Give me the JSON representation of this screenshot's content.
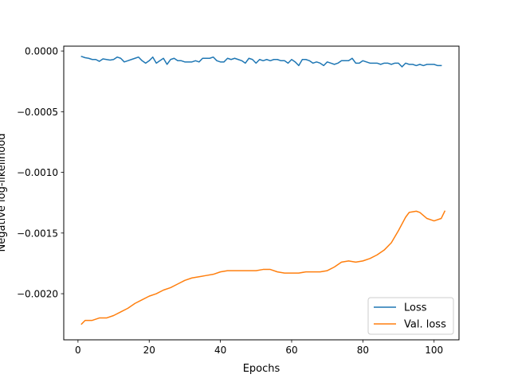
{
  "chart_data": {
    "type": "line",
    "title": "",
    "xlabel": "Epochs",
    "ylabel": "Negative log-likelihood",
    "xlim": [
      -4,
      107
    ],
    "ylim": [
      -0.00238,
      4e-05
    ],
    "x_ticks": [
      0,
      20,
      40,
      60,
      80,
      100
    ],
    "y_ticks": [
      0.0,
      -0.0005,
      -0.001,
      -0.0015,
      -0.002
    ],
    "y_tick_labels": [
      "0.0000",
      "−0.0005",
      "−0.0010",
      "−0.0015",
      "−0.0020"
    ],
    "legend_position": "lower-right",
    "grid": false,
    "series": [
      {
        "name": "Loss",
        "color": "#1f77b4",
        "points": [
          [
            1,
            -4.5e-05
          ],
          [
            2,
            -5.5e-05
          ],
          [
            3,
            -6e-05
          ],
          [
            4,
            -7e-05
          ],
          [
            5,
            -7e-05
          ],
          [
            6,
            -8.5e-05
          ],
          [
            7,
            -6.5e-05
          ],
          [
            8,
            -7e-05
          ],
          [
            9,
            -7.5e-05
          ],
          [
            10,
            -7e-05
          ],
          [
            11,
            -5e-05
          ],
          [
            12,
            -6e-05
          ],
          [
            13,
            -9e-05
          ],
          [
            14,
            -8e-05
          ],
          [
            15,
            -7e-05
          ],
          [
            16,
            -6e-05
          ],
          [
            17,
            -5e-05
          ],
          [
            18,
            -8e-05
          ],
          [
            19,
            -0.0001
          ],
          [
            20,
            -8e-05
          ],
          [
            21,
            -5e-05
          ],
          [
            22,
            -0.0001
          ],
          [
            23,
            -8e-05
          ],
          [
            24,
            -6e-05
          ],
          [
            25,
            -0.00011
          ],
          [
            26,
            -7e-05
          ],
          [
            27,
            -6e-05
          ],
          [
            28,
            -8e-05
          ],
          [
            29,
            -8e-05
          ],
          [
            30,
            -9e-05
          ],
          [
            31,
            -9e-05
          ],
          [
            32,
            -9e-05
          ],
          [
            33,
            -8e-05
          ],
          [
            34,
            -9e-05
          ],
          [
            35,
            -6e-05
          ],
          [
            36,
            -6e-05
          ],
          [
            37,
            -6e-05
          ],
          [
            38,
            -5e-05
          ],
          [
            39,
            -8e-05
          ],
          [
            40,
            -9e-05
          ],
          [
            41,
            -9e-05
          ],
          [
            42,
            -6e-05
          ],
          [
            43,
            -7e-05
          ],
          [
            44,
            -6e-05
          ],
          [
            45,
            -7e-05
          ],
          [
            46,
            -8e-05
          ],
          [
            47,
            -0.0001
          ],
          [
            48,
            -6e-05
          ],
          [
            49,
            -7e-05
          ],
          [
            50,
            -0.0001
          ],
          [
            51,
            -7e-05
          ],
          [
            52,
            -8e-05
          ],
          [
            53,
            -7e-05
          ],
          [
            54,
            -8e-05
          ],
          [
            55,
            -7e-05
          ],
          [
            56,
            -7e-05
          ],
          [
            57,
            -8e-05
          ],
          [
            58,
            -8e-05
          ],
          [
            59,
            -0.0001
          ],
          [
            60,
            -7e-05
          ],
          [
            61,
            -9e-05
          ],
          [
            62,
            -0.00012
          ],
          [
            63,
            -7e-05
          ],
          [
            64,
            -7e-05
          ],
          [
            65,
            -8e-05
          ],
          [
            66,
            -0.0001
          ],
          [
            67,
            -9e-05
          ],
          [
            68,
            -0.0001
          ],
          [
            69,
            -0.00012
          ],
          [
            70,
            -9e-05
          ],
          [
            71,
            -0.0001
          ],
          [
            72,
            -0.00011
          ],
          [
            73,
            -0.0001
          ],
          [
            74,
            -8e-05
          ],
          [
            75,
            -8e-05
          ],
          [
            76,
            -8e-05
          ],
          [
            77,
            -6e-05
          ],
          [
            78,
            -0.0001
          ],
          [
            79,
            -0.0001
          ],
          [
            80,
            -8e-05
          ],
          [
            81,
            -9e-05
          ],
          [
            82,
            -0.0001
          ],
          [
            83,
            -0.0001
          ],
          [
            84,
            -0.0001
          ],
          [
            85,
            -0.00011
          ],
          [
            86,
            -0.0001
          ],
          [
            87,
            -0.0001
          ],
          [
            88,
            -0.00011
          ],
          [
            89,
            -0.0001
          ],
          [
            90,
            -0.0001
          ],
          [
            91,
            -0.00013
          ],
          [
            92,
            -0.0001
          ],
          [
            93,
            -0.00011
          ],
          [
            94,
            -0.00011
          ],
          [
            95,
            -0.00012
          ],
          [
            96,
            -0.00011
          ],
          [
            97,
            -0.00012
          ],
          [
            98,
            -0.00011
          ],
          [
            99,
            -0.00011
          ],
          [
            100,
            -0.00011
          ],
          [
            101,
            -0.00012
          ],
          [
            102,
            -0.00012
          ]
        ]
      },
      {
        "name": "Val. loss",
        "color": "#ff7f0e",
        "points": [
          [
            1,
            -0.00225
          ],
          [
            2,
            -0.00222
          ],
          [
            4,
            -0.00222
          ],
          [
            6,
            -0.0022
          ],
          [
            8,
            -0.0022
          ],
          [
            10,
            -0.00218
          ],
          [
            12,
            -0.00215
          ],
          [
            14,
            -0.00212
          ],
          [
            16,
            -0.00208
          ],
          [
            18,
            -0.00205
          ],
          [
            20,
            -0.00202
          ],
          [
            22,
            -0.002
          ],
          [
            24,
            -0.00197
          ],
          [
            26,
            -0.00195
          ],
          [
            28,
            -0.00192
          ],
          [
            30,
            -0.00189
          ],
          [
            32,
            -0.00187
          ],
          [
            34,
            -0.00186
          ],
          [
            36,
            -0.00185
          ],
          [
            38,
            -0.00184
          ],
          [
            40,
            -0.00182
          ],
          [
            42,
            -0.00181
          ],
          [
            44,
            -0.00181
          ],
          [
            46,
            -0.00181
          ],
          [
            48,
            -0.00181
          ],
          [
            50,
            -0.00181
          ],
          [
            52,
            -0.0018
          ],
          [
            54,
            -0.0018
          ],
          [
            56,
            -0.00182
          ],
          [
            58,
            -0.00183
          ],
          [
            60,
            -0.00183
          ],
          [
            62,
            -0.00183
          ],
          [
            64,
            -0.00182
          ],
          [
            66,
            -0.00182
          ],
          [
            68,
            -0.00182
          ],
          [
            70,
            -0.00181
          ],
          [
            72,
            -0.00178
          ],
          [
            74,
            -0.00174
          ],
          [
            76,
            -0.00173
          ],
          [
            78,
            -0.00174
          ],
          [
            80,
            -0.00173
          ],
          [
            82,
            -0.00171
          ],
          [
            84,
            -0.00168
          ],
          [
            86,
            -0.00164
          ],
          [
            88,
            -0.00158
          ],
          [
            90,
            -0.00148
          ],
          [
            92,
            -0.00137
          ],
          [
            93,
            -0.00133
          ],
          [
            95,
            -0.00132
          ],
          [
            96,
            -0.00133
          ],
          [
            98,
            -0.00138
          ],
          [
            100,
            -0.0014
          ],
          [
            102,
            -0.00138
          ],
          [
            103,
            -0.00132
          ]
        ]
      }
    ]
  }
}
